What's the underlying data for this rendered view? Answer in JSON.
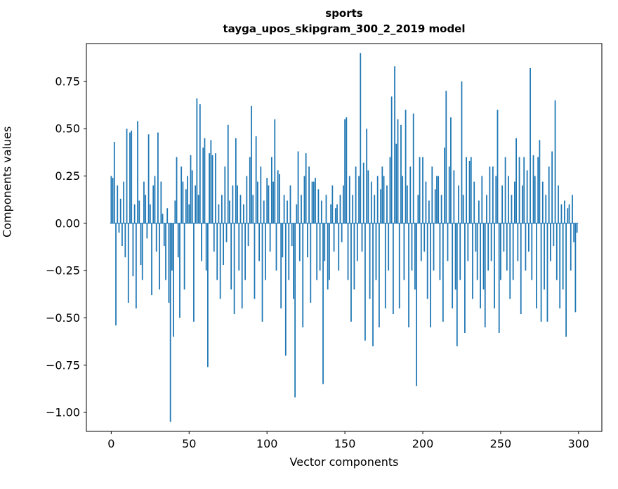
{
  "figure": {
    "title_line1": "sports",
    "title_line2": "tayga_upos_skipgram_300_2_2019 model",
    "xlabel": "Vector components",
    "ylabel": "Components values"
  },
  "chart_data": {
    "type": "bar",
    "title": "sports\ntayga_upos_skipgram_300_2_2019 model",
    "xlabel": "Vector components",
    "ylabel": "Components values",
    "legend": null,
    "grid": false,
    "bar_color": "#1f77b4",
    "axis_color": "#000000",
    "xlim": [
      -15.95,
      314.95
    ],
    "ylim": [
      -1.1,
      0.95
    ],
    "xticks": [
      0,
      50,
      100,
      150,
      200,
      250,
      300
    ],
    "yticks": [
      -1.0,
      -0.75,
      -0.5,
      -0.25,
      0.0,
      0.25,
      0.5,
      0.75
    ],
    "bar_width_data_units": 0.8,
    "values": [
      0.25,
      0.24,
      0.43,
      -0.54,
      0.2,
      -0.05,
      0.13,
      -0.12,
      0.22,
      -0.18,
      0.5,
      -0.42,
      0.48,
      0.49,
      -0.28,
      0.1,
      -0.45,
      0.54,
      0.12,
      -0.22,
      -0.3,
      0.22,
      0.15,
      -0.08,
      0.47,
      0.1,
      -0.38,
      0.2,
      0.25,
      -0.15,
      0.48,
      -0.35,
      0.22,
      0.05,
      -0.12,
      -0.3,
      0.08,
      -0.42,
      -1.05,
      -0.25,
      -0.6,
      0.12,
      0.35,
      -0.18,
      -0.5,
      0.3,
      0.22,
      -0.35,
      0.18,
      0.25,
      0.1,
      0.36,
      0.28,
      -0.52,
      0.2,
      0.66,
      0.15,
      0.63,
      -0.2,
      0.4,
      0.45,
      -0.25,
      -0.76,
      0.37,
      0.44,
      0.36,
      -0.15,
      0.37,
      -0.3,
      0.1,
      -0.4,
      0.15,
      -0.22,
      0.3,
      -0.1,
      0.52,
      0.12,
      -0.35,
      0.2,
      -0.48,
      0.45,
      0.2,
      -0.25,
      0.15,
      -0.45,
      0.1,
      -0.3,
      0.25,
      -0.12,
      0.35,
      0.62,
      0.15,
      -0.4,
      0.46,
      0.22,
      -0.2,
      0.3,
      -0.52,
      0.12,
      -0.3,
      0.24,
      0.2,
      -0.15,
      0.35,
      0.22,
      0.55,
      -0.25,
      0.28,
      0.26,
      -0.45,
      -0.18,
      0.15,
      -0.7,
      0.12,
      -0.3,
      0.2,
      -0.12,
      -0.4,
      -0.92,
      0.1,
      0.38,
      -0.2,
      0.15,
      -0.55,
      0.25,
      0.37,
      -0.18,
      0.3,
      -0.42,
      0.22,
      0.22,
      0.24,
      -0.3,
      0.18,
      -0.25,
      0.12,
      -0.85,
      -0.2,
      0.15,
      -0.35,
      -0.3,
      0.1,
      0.2,
      -0.15,
      0.08,
      0.1,
      -0.25,
      0.15,
      -0.1,
      0.2,
      0.55,
      0.56,
      -0.3,
      0.25,
      -0.52,
      0.15,
      -0.35,
      0.3,
      -0.2,
      0.25,
      0.9,
      -0.15,
      0.32,
      -0.62,
      0.5,
      0.28,
      -0.4,
      0.22,
      -0.65,
      0.15,
      -0.3,
      0.25,
      -0.55,
      0.18,
      0.3,
      0.25,
      -0.45,
      0.2,
      -0.25,
      0.35,
      0.67,
      -0.48,
      0.83,
      0.42,
      0.55,
      -0.45,
      0.52,
      0.25,
      -0.3,
      0.6,
      0.2,
      -0.55,
      0.3,
      -0.25,
      0.58,
      -0.35,
      -0.86,
      0.15,
      0.35,
      -0.2,
      0.35,
      -0.15,
      0.22,
      -0.4,
      0.12,
      -0.55,
      0.3,
      -0.25,
      0.18,
      0.25,
      0.25,
      -0.3,
      0.15,
      -0.52,
      0.4,
      0.7,
      -0.2,
      0.3,
      0.56,
      -0.45,
      0.28,
      -0.35,
      -0.65,
      0.2,
      -0.3,
      0.75,
      0.15,
      -0.58,
      0.35,
      -0.2,
      0.33,
      0.35,
      -0.4,
      0.22,
      -0.15,
      -0.3,
      0.12,
      -0.45,
      0.25,
      -0.35,
      -0.55,
      0.15,
      -0.25,
      0.3,
      -0.2,
      0.3,
      -0.45,
      0.25,
      0.6,
      -0.58,
      -0.3,
      0.2,
      -0.15,
      0.35,
      -0.25,
      0.25,
      -0.4,
      0.15,
      -0.3,
      0.22,
      0.45,
      -0.2,
      0.35,
      -0.48,
      0.2,
      0.35,
      -0.25,
      0.28,
      -0.15,
      0.82,
      -0.3,
      0.36,
      0.25,
      -0.45,
      0.35,
      0.44,
      -0.52,
      0.22,
      -0.35,
      0.15,
      -0.52,
      0.3,
      -0.2,
      0.38,
      -0.12,
      0.65,
      -0.3,
      0.2,
      -0.45,
      0.1,
      -0.35,
      0.12,
      -0.6,
      0.08,
      0.1,
      -0.25,
      0.15,
      -0.1,
      -0.47,
      -0.05
    ]
  }
}
